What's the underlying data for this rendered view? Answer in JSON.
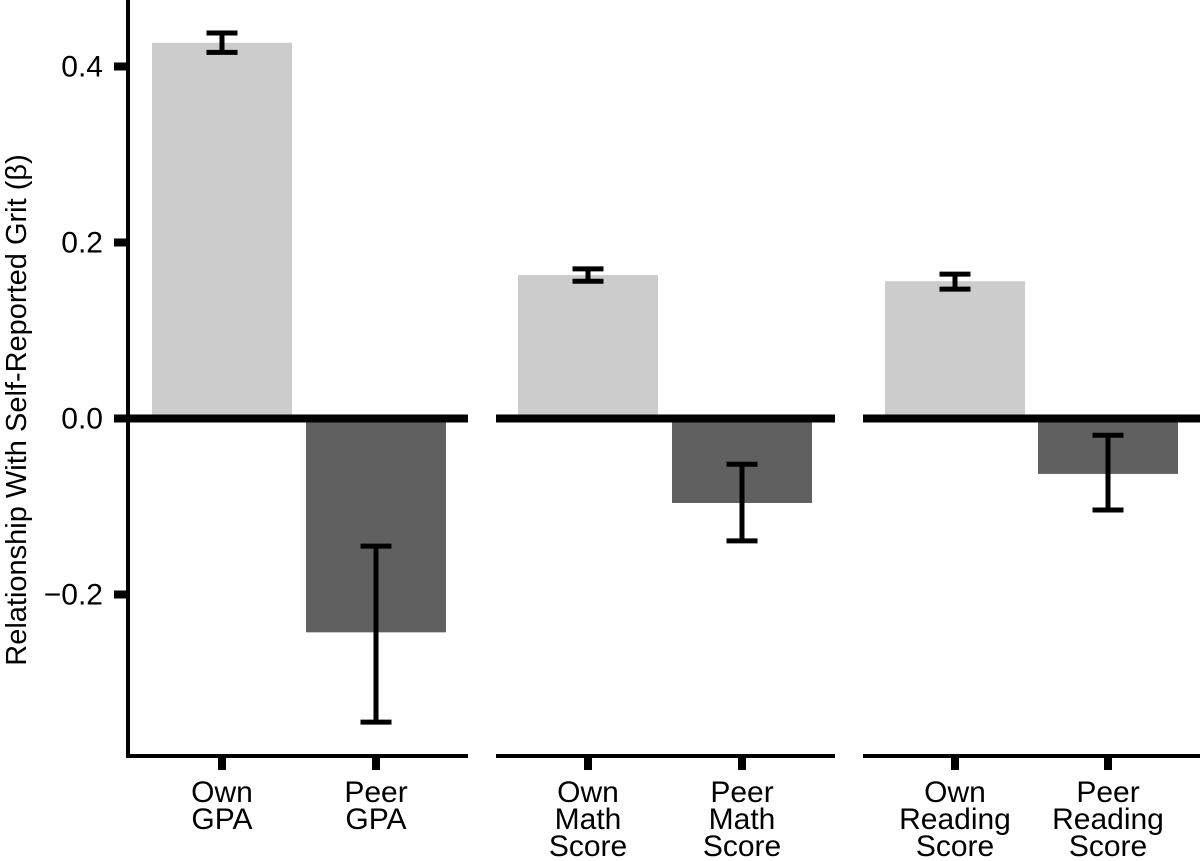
{
  "chart_data": {
    "type": "bar",
    "title": "",
    "xlabel": "",
    "ylabel": "Relationship With Self-Reported Grit (β)",
    "ylim": [
      -0.385,
      0.476
    ],
    "grid": false,
    "legend": false,
    "background_color": "#ffffff",
    "axis_color": "#000000",
    "error_bar_color": "#000000",
    "series_colors": {
      "own": "#cccccc",
      "peer": "#606060"
    },
    "yticks": [
      {
        "value": 0.4,
        "label": "0.4"
      },
      {
        "value": 0.2,
        "label": "0.2"
      },
      {
        "value": 0.0,
        "label": "0.0"
      },
      {
        "value": -0.2,
        "label": "−0.2"
      }
    ],
    "groups": [
      {
        "name": "GPA",
        "bars": [
          {
            "label_lines": [
              "Own",
              "GPA"
            ],
            "series": "own",
            "value": 0.427,
            "ci_low": 0.416,
            "ci_high": 0.438
          },
          {
            "label_lines": [
              "Peer",
              "GPA"
            ],
            "series": "peer",
            "value": -0.243,
            "ci_low": -0.345,
            "ci_high": -0.145
          }
        ]
      },
      {
        "name": "Math Score",
        "bars": [
          {
            "label_lines": [
              "Own",
              "Math",
              "Score"
            ],
            "series": "own",
            "value": 0.163,
            "ci_low": 0.156,
            "ci_high": 0.17
          },
          {
            "label_lines": [
              "Peer",
              "Math",
              "Score"
            ],
            "series": "peer",
            "value": -0.096,
            "ci_low": -0.139,
            "ci_high": -0.052
          }
        ]
      },
      {
        "name": "Reading Score",
        "bars": [
          {
            "label_lines": [
              "Own",
              "Reading",
              "Score"
            ],
            "series": "own",
            "value": 0.156,
            "ci_low": 0.147,
            "ci_high": 0.164
          },
          {
            "label_lines": [
              "Peer",
              "Reading",
              "Score"
            ],
            "series": "peer",
            "value": -0.063,
            "ci_low": -0.104,
            "ci_high": -0.019
          }
        ]
      }
    ]
  }
}
